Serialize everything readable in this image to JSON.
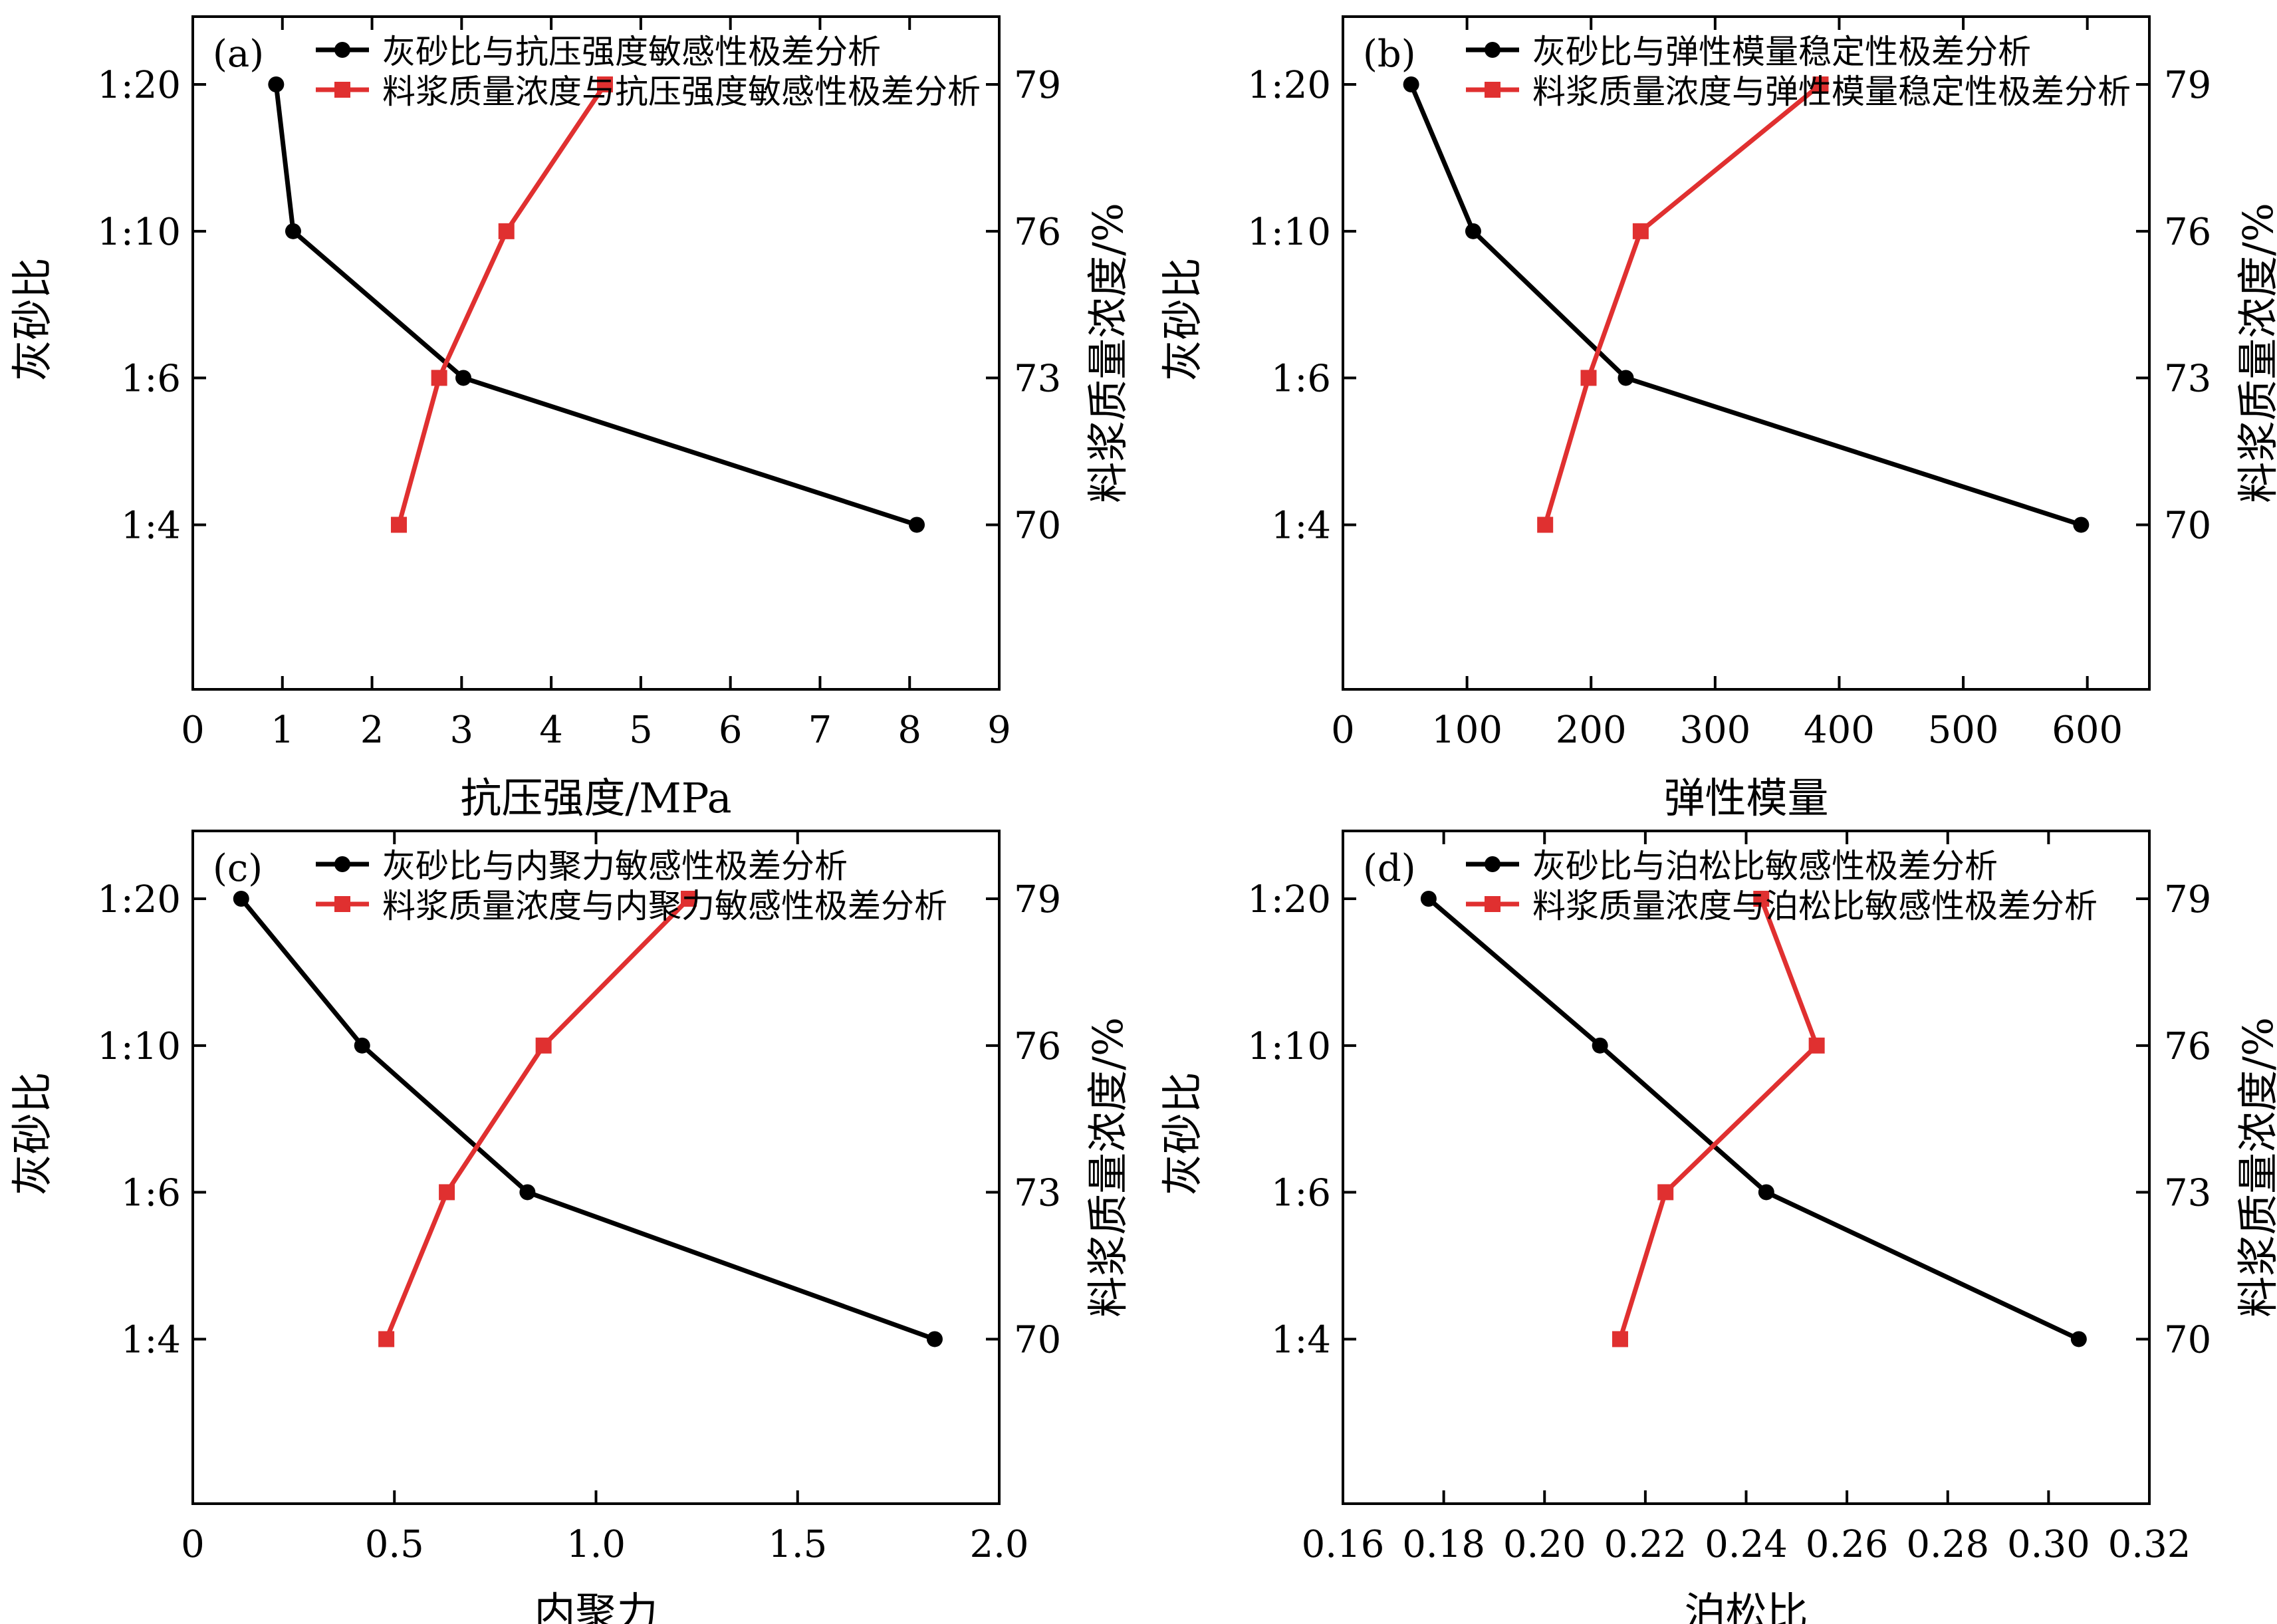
{
  "figure": {
    "left_axis_label": "灰砂比",
    "right_axis_label": "料浆质量浓度/%",
    "left_ticks": [
      "1:4",
      "1:6",
      "1:10",
      "1:20"
    ],
    "right_ticks": [
      "70",
      "73",
      "76",
      "79"
    ],
    "colors": {
      "ratio_series": "#000000",
      "concentration_series": "#e03030"
    }
  },
  "chart_data": [
    {
      "type": "line",
      "panel": "(a)",
      "xlabel": "抗压强度/MPa",
      "xlim": [
        0,
        9
      ],
      "xticks": [
        "0",
        "1",
        "2",
        "3",
        "4",
        "5",
        "6",
        "7",
        "8",
        "9"
      ],
      "ylabel": "灰砂比",
      "y_categories": [
        "1:4",
        "1:6",
        "1:10",
        "1:20"
      ],
      "y2label": "料浆质量浓度/%",
      "y2_categories": [
        "70",
        "73",
        "76",
        "79"
      ],
      "legend_position": "top",
      "series": [
        {
          "name": "灰砂比与抗压强度敏感性极差分析",
          "axis": "left",
          "color": "#000000",
          "marker": "circle",
          "x": [
            8.08,
            3.02,
            1.12,
            0.93
          ],
          "y": [
            "1:4",
            "1:6",
            "1:10",
            "1:20"
          ]
        },
        {
          "name": "料浆质量浓度与抗压强度敏感性极差分析",
          "axis": "right",
          "color": "#e03030",
          "marker": "square",
          "x": [
            2.3,
            2.75,
            3.5,
            4.6
          ],
          "y": [
            "70",
            "73",
            "76",
            "79"
          ]
        }
      ]
    },
    {
      "type": "line",
      "panel": "(b)",
      "xlabel": "弹性模量",
      "xlim": [
        0,
        650
      ],
      "xticks": [
        "0",
        "100",
        "200",
        "300",
        "400",
        "500",
        "600"
      ],
      "ylabel": "灰砂比",
      "y_categories": [
        "1:4",
        "1:6",
        "1:10",
        "1:20"
      ],
      "y2label": "料浆质量浓度/%",
      "y2_categories": [
        "70",
        "73",
        "76",
        "79"
      ],
      "legend_position": "top",
      "series": [
        {
          "name": "灰砂比与弹性模量稳定性极差分析",
          "axis": "left",
          "color": "#000000",
          "marker": "circle",
          "x": [
            595,
            228,
            105,
            55
          ],
          "y": [
            "1:4",
            "1:6",
            "1:10",
            "1:20"
          ]
        },
        {
          "name": "料浆质量浓度与弹性模量稳定性极差分析",
          "axis": "right",
          "color": "#e03030",
          "marker": "square",
          "x": [
            163,
            198,
            240,
            385
          ],
          "y": [
            "70",
            "73",
            "76",
            "79"
          ]
        }
      ]
    },
    {
      "type": "line",
      "panel": "(c)",
      "xlabel": "内聚力",
      "xlim": [
        0,
        2.0
      ],
      "xticks": [
        "0",
        "0.5",
        "1.0",
        "1.5",
        "2.0"
      ],
      "ylabel": "灰砂比",
      "y_categories": [
        "1:4",
        "1:6",
        "1:10",
        "1:20"
      ],
      "y2label": "料浆质量浓度/%",
      "y2_categories": [
        "70",
        "73",
        "76",
        "79"
      ],
      "legend_position": "top",
      "series": [
        {
          "name": "灰砂比与内聚力敏感性极差分析",
          "axis": "left",
          "color": "#000000",
          "marker": "circle",
          "x": [
            1.84,
            0.83,
            0.42,
            0.12
          ],
          "y": [
            "1:4",
            "1:6",
            "1:10",
            "1:20"
          ]
        },
        {
          "name": "料浆质量浓度与内聚力敏感性极差分析",
          "axis": "right",
          "color": "#e03030",
          "marker": "square",
          "x": [
            0.48,
            0.63,
            0.87,
            1.23
          ],
          "y": [
            "70",
            "73",
            "76",
            "79"
          ]
        }
      ]
    },
    {
      "type": "line",
      "panel": "(d)",
      "xlabel": "泊松比",
      "xlim": [
        0.16,
        0.32
      ],
      "xticks": [
        "0.16",
        "0.18",
        "0.20",
        "0.22",
        "0.24",
        "0.26",
        "0.28",
        "0.30",
        "0.32"
      ],
      "ylabel": "灰砂比",
      "y_categories": [
        "1:4",
        "1:6",
        "1:10",
        "1:20"
      ],
      "y2label": "料浆质量浓度/%",
      "y2_categories": [
        "70",
        "73",
        "76",
        "79"
      ],
      "legend_position": "top",
      "series": [
        {
          "name": "灰砂比与泊松比敏感性极差分析",
          "axis": "left",
          "color": "#000000",
          "marker": "circle",
          "x": [
            0.306,
            0.244,
            0.211,
            0.177
          ],
          "y": [
            "1:4",
            "1:6",
            "1:10",
            "1:20"
          ]
        },
        {
          "name": "料浆质量浓度与泊松比敏感性极差分析",
          "axis": "right",
          "color": "#e03030",
          "marker": "square",
          "x": [
            0.215,
            0.224,
            0.254,
            0.243
          ],
          "y": [
            "70",
            "73",
            "76",
            "79"
          ]
        }
      ]
    }
  ]
}
